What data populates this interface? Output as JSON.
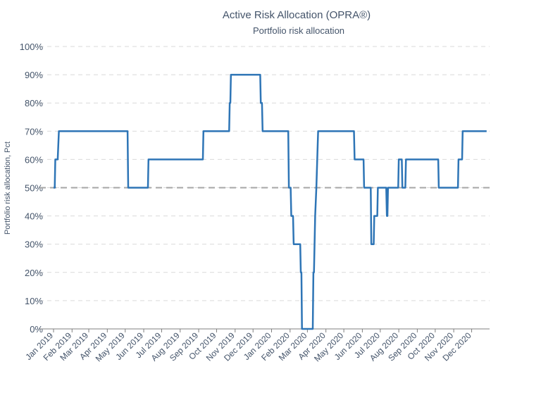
{
  "chart_data": {
    "type": "line",
    "title": "Active Risk Allocation (OPRA®)",
    "subtitle": "Portfolio risk allocation",
    "xlabel": "",
    "ylabel": "Portfolio risk allocation, Pct",
    "ylim": [
      0,
      100
    ],
    "yticks": [
      "0%",
      "10%",
      "20%",
      "30%",
      "40%",
      "50%",
      "60%",
      "70%",
      "80%",
      "90%",
      "100%"
    ],
    "xticks": [
      "Jan 2019",
      "Feb 2019",
      "Mar 2019",
      "Apr 2019",
      "May 2019",
      "Jun 2019",
      "Jul 2019",
      "Aug 2019",
      "Sep 2019",
      "Oct 2019",
      "Nov 2019",
      "Dec 2019",
      "Jan 2020",
      "Feb 2020",
      "Mar 2020",
      "Apr 2020",
      "May 2020",
      "Jun 2020",
      "Jul 2020",
      "Aug 2020",
      "Sep 2020",
      "Oct 2020",
      "Nov 2020",
      "Dec 2020"
    ],
    "xlim": [
      "2019-01-01",
      "2020-12-31"
    ],
    "grid": true,
    "reference_line": {
      "y": 50,
      "style": "dashed"
    },
    "colors": {
      "line": "#2e75b6",
      "reference": "#a6a6a6",
      "grid": "#d9d9d9",
      "text": "#44546a"
    },
    "series": [
      {
        "x": [
          "2019-01-01",
          "2019-01-03",
          "2019-01-04",
          "2019-01-07",
          "2019-01-08",
          "2019-01-10",
          "2019-01-11",
          "2019-01-12",
          "2019-05-05",
          "2019-05-06",
          "2019-06-08",
          "2019-06-09",
          "2019-09-08",
          "2019-09-09",
          "2019-10-22",
          "2019-10-23",
          "2019-10-24",
          "2019-10-25",
          "2019-12-13",
          "2019-12-14",
          "2019-12-16",
          "2019-12-17",
          "2020-01-29",
          "2020-01-30",
          "2020-02-02",
          "2020-02-03",
          "2020-02-06",
          "2020-02-07",
          "2020-02-18",
          "2020-02-19",
          "2020-02-20",
          "2020-02-21",
          "2020-03-10",
          "2020-03-11",
          "2020-03-12",
          "2020-03-14",
          "2020-03-16",
          "2020-03-19",
          "2020-03-20",
          "2020-05-18",
          "2020-05-19",
          "2020-06-03",
          "2020-06-04",
          "2020-06-15",
          "2020-06-16",
          "2020-06-20",
          "2020-06-21",
          "2020-06-26",
          "2020-06-27",
          "2020-07-11",
          "2020-07-12",
          "2020-07-13",
          "2020-07-14",
          "2020-07-16",
          "2020-07-17",
          "2020-07-31",
          "2020-08-01",
          "2020-08-06",
          "2020-08-07",
          "2020-08-12",
          "2020-08-13",
          "2020-08-14",
          "2020-08-15",
          "2020-08-16",
          "2020-08-17",
          "2020-10-06",
          "2020-10-07",
          "2020-11-08",
          "2020-11-09",
          "2020-11-15",
          "2020-11-16",
          "2020-12-26"
        ],
        "values": [
          50,
          50,
          60,
          60,
          60,
          70,
          70,
          70,
          70,
          50,
          50,
          60,
          60,
          70,
          70,
          80,
          80,
          90,
          90,
          80,
          80,
          70,
          70,
          50,
          50,
          40,
          40,
          30,
          30,
          20,
          20,
          0,
          0,
          20,
          20,
          40,
          50,
          70,
          70,
          70,
          60,
          60,
          50,
          50,
          30,
          30,
          40,
          40,
          50,
          50,
          40,
          40,
          50,
          50,
          50,
          50,
          60,
          60,
          50,
          50,
          60,
          60,
          60,
          60,
          60,
          60,
          50,
          50,
          60,
          60,
          70,
          70
        ]
      }
    ]
  }
}
